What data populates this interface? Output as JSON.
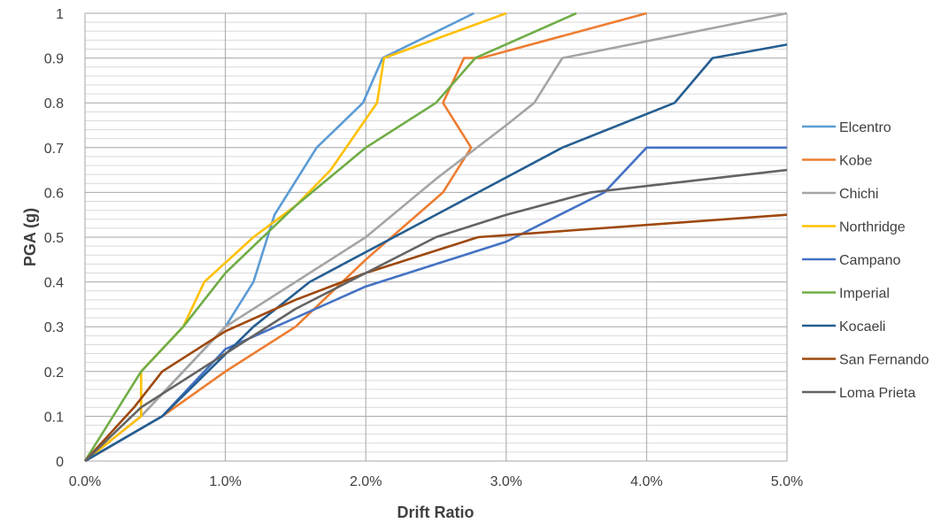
{
  "chart_data": {
    "type": "line",
    "title": "",
    "xlabel": "Drift Ratio",
    "ylabel": "PGA (g)",
    "xlim": [
      0,
      5
    ],
    "ylim": [
      0,
      1
    ],
    "x_ticks": [
      "0.0%",
      "1.0%",
      "2.0%",
      "3.0%",
      "4.0%",
      "5.0%"
    ],
    "y_ticks": [
      "0",
      "0.1",
      "0.2",
      "0.3",
      "0.4",
      "0.5",
      "0.6",
      "0.7",
      "0.8",
      "0.9",
      "1"
    ],
    "x_unit": "percent",
    "grid": {
      "major_x": true,
      "major_y": true,
      "minor_y": true
    },
    "legend_position": "right",
    "series": [
      {
        "name": "Elcentro",
        "color": "#5B9BD5",
        "x": [
          0,
          0.4,
          0.7,
          1.0,
          1.2,
          1.3,
          1.35,
          1.45,
          1.65,
          1.98,
          2.12,
          2.77
        ],
        "y": [
          0,
          0.1,
          0.2,
          0.3,
          0.4,
          0.5,
          0.55,
          0.6,
          0.7,
          0.8,
          0.9,
          1.0
        ]
      },
      {
        "name": "Kobe",
        "color": "#ED7D31",
        "x": [
          0,
          0.55,
          1.0,
          1.5,
          2.0,
          2.55,
          2.75,
          2.55,
          2.7,
          2.82,
          4.0
        ],
        "y": [
          0,
          0.1,
          0.2,
          0.3,
          0.45,
          0.6,
          0.7,
          0.8,
          0.9,
          0.9,
          1.0
        ]
      },
      {
        "name": "Chichi",
        "color": "#A5A5A5",
        "x": [
          0,
          0.4,
          1.0,
          1.5,
          2.0,
          2.5,
          3.0,
          3.2,
          3.4,
          5.0
        ],
        "y": [
          0,
          0.1,
          0.3,
          0.4,
          0.5,
          0.63,
          0.75,
          0.8,
          0.9,
          1.0
        ]
      },
      {
        "name": "Northridge",
        "color": "#FFC000",
        "x": [
          0,
          0.4,
          0.4,
          0.7,
          0.85,
          1.2,
          1.5,
          1.75,
          2.08,
          2.13,
          3.0
        ],
        "y": [
          0,
          0.1,
          0.2,
          0.3,
          0.4,
          0.5,
          0.57,
          0.65,
          0.8,
          0.9,
          1.0
        ]
      },
      {
        "name": "Campano",
        "color": "#4472C4",
        "x": [
          0,
          0.55,
          1.0,
          2.0,
          3.0,
          3.7,
          4.0,
          5.0
        ],
        "y": [
          0,
          0.1,
          0.25,
          0.39,
          0.49,
          0.6,
          0.7,
          0.7
        ]
      },
      {
        "name": "Imperial",
        "color": "#70AD47",
        "x": [
          0,
          0.4,
          0.7,
          1.0,
          1.5,
          2.0,
          2.5,
          2.78,
          3.5
        ],
        "y": [
          0,
          0.2,
          0.3,
          0.42,
          0.57,
          0.7,
          0.8,
          0.9,
          1.0
        ]
      },
      {
        "name": "Kocaeli",
        "color": "#255E91",
        "x": [
          0,
          0.55,
          1.2,
          1.6,
          2.8,
          3.4,
          4.2,
          4.47,
          5.0
        ],
        "y": [
          0,
          0.1,
          0.3,
          0.4,
          0.6,
          0.7,
          0.8,
          0.9,
          0.93
        ]
      },
      {
        "name": "San Fernando",
        "color": "#9E480E",
        "x": [
          0,
          0.35,
          0.55,
          1.0,
          1.5,
          2.0,
          2.8,
          5.0
        ],
        "y": [
          0,
          0.12,
          0.2,
          0.29,
          0.36,
          0.42,
          0.5,
          0.55
        ]
      },
      {
        "name": "Loma Prieta",
        "color": "#636363",
        "x": [
          0,
          0.4,
          1.0,
          1.5,
          2.0,
          2.5,
          3.0,
          3.6,
          5.0
        ],
        "y": [
          0,
          0.12,
          0.24,
          0.34,
          0.42,
          0.5,
          0.55,
          0.6,
          0.65
        ]
      }
    ]
  }
}
